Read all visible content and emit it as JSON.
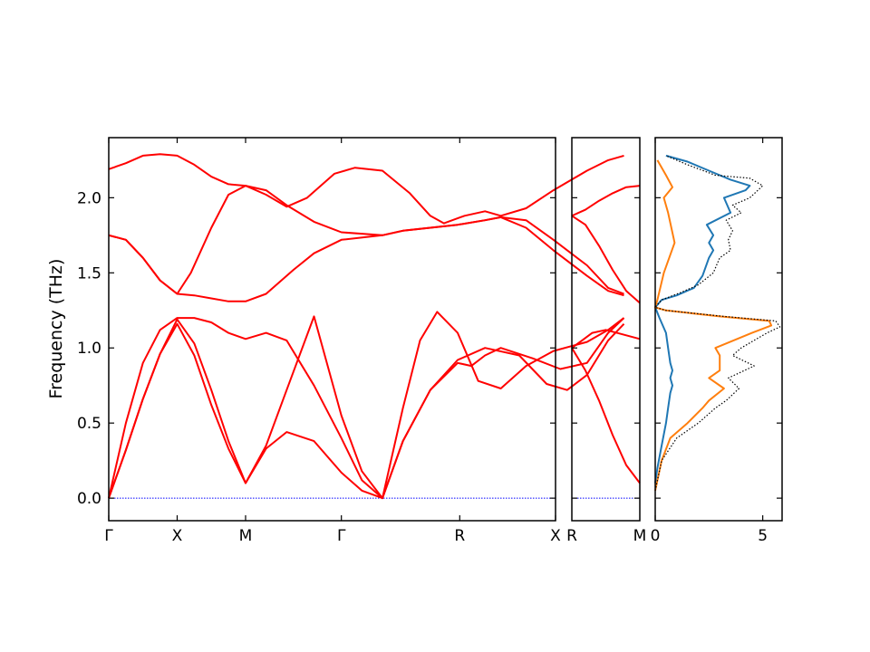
{
  "chart_data": [
    {
      "type": "line",
      "panel": "band-structure",
      "ylabel": "Frequency (THz)",
      "ylim": [
        -0.15,
        2.4
      ],
      "yticks": [
        "0.0",
        "0.5",
        "1.0",
        "1.5",
        "2.0"
      ],
      "ytick_values": [
        0.0,
        0.5,
        1.0,
        1.5,
        2.0
      ],
      "xticks": [
        "Γ",
        "X",
        "M",
        "Γ",
        "R",
        "X"
      ],
      "xtick_positions": [
        0,
        1,
        2,
        3,
        4,
        5
      ],
      "x_segment_widths": [
        1,
        1,
        1.4,
        1.73,
        1.4
      ],
      "baseline": {
        "y": 0.0,
        "color": "#0000ff",
        "style": "dotted"
      },
      "band_color": "#ff0000",
      "bands": [
        [
          [
            0,
            0
          ],
          [
            0.25,
            0.32
          ],
          [
            0.5,
            0.66
          ],
          [
            0.75,
            0.96
          ],
          [
            1,
            1.16
          ],
          [
            1.25,
            0.95
          ],
          [
            1.5,
            0.62
          ],
          [
            1.75,
            0.33
          ],
          [
            2,
            0.1
          ],
          [
            2.3,
            0.35
          ],
          [
            2.6,
            0.72
          ],
          [
            3,
            1.21
          ],
          [
            3.4,
            0.55
          ],
          [
            3.7,
            0.18
          ],
          [
            4,
            0
          ],
          [
            4.3,
            0.38
          ],
          [
            4.7,
            0.72
          ],
          [
            5.1,
            0.92
          ],
          [
            5.5,
            1.0
          ],
          [
            6,
            0.95
          ],
          [
            6.4,
            0.76
          ],
          [
            6.7,
            0.72
          ],
          [
            6.99,
            0.82
          ],
          [
            7.3,
            1.05
          ],
          [
            7.53,
            1.16
          ]
        ],
        [
          [
            0,
            0
          ],
          [
            0.25,
            0.32
          ],
          [
            0.5,
            0.66
          ],
          [
            0.75,
            0.96
          ],
          [
            1,
            1.19
          ],
          [
            1.25,
            1.03
          ],
          [
            1.5,
            0.72
          ],
          [
            1.75,
            0.38
          ],
          [
            2,
            0.1
          ],
          [
            2.3,
            0.33
          ],
          [
            2.6,
            0.44
          ],
          [
            3,
            0.38
          ],
          [
            3.4,
            0.17
          ],
          [
            3.7,
            0.05
          ],
          [
            4,
            0
          ],
          [
            4.3,
            0.38
          ],
          [
            4.7,
            0.72
          ],
          [
            5.1,
            0.9
          ],
          [
            5.3,
            0.88
          ],
          [
            5.5,
            0.95
          ],
          [
            5.73,
            1.0
          ],
          [
            6.2,
            0.93
          ],
          [
            6.6,
            0.86
          ],
          [
            6.99,
            0.9
          ],
          [
            7.3,
            1.1
          ],
          [
            7.53,
            1.2
          ]
        ],
        [
          [
            0,
            0
          ],
          [
            0.25,
            0.5
          ],
          [
            0.5,
            0.9
          ],
          [
            0.75,
            1.12
          ],
          [
            1,
            1.2
          ],
          [
            1.25,
            1.2
          ],
          [
            1.5,
            1.17
          ],
          [
            1.75,
            1.1
          ],
          [
            2,
            1.06
          ],
          [
            2.3,
            1.1
          ],
          [
            2.6,
            1.05
          ],
          [
            3,
            0.75
          ],
          [
            3.4,
            0.4
          ],
          [
            3.7,
            0.12
          ],
          [
            4,
            0
          ],
          [
            4.3,
            0.6
          ],
          [
            4.55,
            1.05
          ],
          [
            4.8,
            1.24
          ],
          [
            5.1,
            1.1
          ],
          [
            5.4,
            0.78
          ],
          [
            5.73,
            0.73
          ],
          [
            6.1,
            0.88
          ],
          [
            6.5,
            0.98
          ],
          [
            6.99,
            1.04
          ],
          [
            7.3,
            1.12
          ],
          [
            7.53,
            1.2
          ]
        ],
        [
          [
            0,
            1.75
          ],
          [
            0.25,
            1.72
          ],
          [
            0.5,
            1.6
          ],
          [
            0.75,
            1.45
          ],
          [
            1,
            1.36
          ],
          [
            1.25,
            1.35
          ],
          [
            1.5,
            1.33
          ],
          [
            1.75,
            1.31
          ],
          [
            2,
            1.31
          ],
          [
            2.3,
            1.36
          ],
          [
            2.7,
            1.52
          ],
          [
            3,
            1.63
          ],
          [
            3.4,
            1.72
          ],
          [
            4,
            1.75
          ],
          [
            4.3,
            1.78
          ],
          [
            4.7,
            1.8
          ],
          [
            5.1,
            1.82
          ],
          [
            5.5,
            1.85
          ],
          [
            5.73,
            1.87
          ],
          [
            6.1,
            1.8
          ],
          [
            6.5,
            1.65
          ],
          [
            6.99,
            1.48
          ],
          [
            7.3,
            1.38
          ],
          [
            7.53,
            1.35
          ]
        ],
        [
          [
            0,
            1.75
          ],
          [
            0.25,
            1.72
          ],
          [
            0.5,
            1.6
          ],
          [
            0.75,
            1.45
          ],
          [
            1,
            1.36
          ],
          [
            1.2,
            1.5
          ],
          [
            1.5,
            1.8
          ],
          [
            1.75,
            2.02
          ],
          [
            2,
            2.08
          ],
          [
            2.3,
            2.05
          ],
          [
            2.6,
            1.95
          ],
          [
            3,
            1.84
          ],
          [
            3.4,
            1.77
          ],
          [
            4,
            1.75
          ],
          [
            4.3,
            1.78
          ],
          [
            4.7,
            1.8
          ],
          [
            5.1,
            1.82
          ],
          [
            5.5,
            1.85
          ],
          [
            5.73,
            1.87
          ],
          [
            6.1,
            1.85
          ],
          [
            6.5,
            1.72
          ],
          [
            6.99,
            1.55
          ],
          [
            7.3,
            1.4
          ],
          [
            7.53,
            1.36
          ]
        ],
        [
          [
            0,
            2.19
          ],
          [
            0.25,
            2.23
          ],
          [
            0.5,
            2.28
          ],
          [
            0.75,
            2.29
          ],
          [
            1,
            2.28
          ],
          [
            1.25,
            2.22
          ],
          [
            1.5,
            2.14
          ],
          [
            1.75,
            2.09
          ],
          [
            2,
            2.08
          ],
          [
            2.3,
            2.02
          ],
          [
            2.6,
            1.94
          ],
          [
            2.9,
            2.0
          ],
          [
            3.3,
            2.16
          ],
          [
            3.6,
            2.2
          ],
          [
            4,
            2.18
          ],
          [
            4.4,
            2.03
          ],
          [
            4.7,
            1.88
          ],
          [
            4.9,
            1.83
          ],
          [
            5.2,
            1.88
          ],
          [
            5.5,
            1.91
          ],
          [
            5.73,
            1.88
          ],
          [
            6.1,
            1.93
          ],
          [
            6.5,
            2.05
          ],
          [
            6.99,
            2.18
          ],
          [
            7.3,
            2.25
          ],
          [
            7.53,
            2.28
          ]
        ]
      ]
    },
    {
      "type": "line",
      "panel": "band-structure-segment",
      "xticks": [
        "R",
        "M"
      ],
      "xtick_positions": [
        0,
        1
      ],
      "ylim": [
        -0.15,
        2.4
      ],
      "band_color": "#ff0000",
      "bands": [
        [
          [
            0,
            1.0
          ],
          [
            0.2,
            0.85
          ],
          [
            0.4,
            0.65
          ],
          [
            0.6,
            0.42
          ],
          [
            0.8,
            0.22
          ],
          [
            1,
            0.1
          ]
        ],
        [
          [
            0,
            1.0
          ],
          [
            0.15,
            1.05
          ],
          [
            0.3,
            1.1
          ],
          [
            0.5,
            1.12
          ],
          [
            0.75,
            1.09
          ],
          [
            1,
            1.06
          ]
        ],
        [
          [
            0,
            1.88
          ],
          [
            0.2,
            1.82
          ],
          [
            0.4,
            1.68
          ],
          [
            0.6,
            1.52
          ],
          [
            0.8,
            1.38
          ],
          [
            1,
            1.3
          ]
        ],
        [
          [
            0,
            1.88
          ],
          [
            0.2,
            1.92
          ],
          [
            0.4,
            1.98
          ],
          [
            0.6,
            2.03
          ],
          [
            0.8,
            2.07
          ],
          [
            1,
            2.08
          ]
        ]
      ]
    },
    {
      "type": "line",
      "panel": "density-of-states",
      "xticks": [
        "0",
        "5"
      ],
      "xtick_values": [
        0,
        5
      ],
      "xlim": [
        0,
        5.9
      ],
      "ylim": [
        -0.15,
        2.4
      ],
      "series": [
        {
          "color": "#1f77b4",
          "style": "solid",
          "points": [
            [
              0,
              0.1
            ],
            [
              0.1,
              0.2
            ],
            [
              0.3,
              0.35
            ],
            [
              0.5,
              0.5
            ],
            [
              0.6,
              0.6
            ],
            [
              0.7,
              0.7
            ],
            [
              0.8,
              0.75
            ],
            [
              0.7,
              0.8
            ],
            [
              0.8,
              0.85
            ],
            [
              0.7,
              0.9
            ],
            [
              0.6,
              1.0
            ],
            [
              0.5,
              1.1
            ],
            [
              0.2,
              1.2
            ],
            [
              0,
              1.27
            ],
            [
              0.3,
              1.32
            ],
            [
              1.0,
              1.35
            ],
            [
              1.8,
              1.4
            ],
            [
              2.2,
              1.48
            ],
            [
              2.5,
              1.6
            ],
            [
              2.7,
              1.65
            ],
            [
              2.5,
              1.7
            ],
            [
              2.7,
              1.75
            ],
            [
              2.4,
              1.82
            ],
            [
              3.5,
              1.9
            ],
            [
              3.2,
              2.0
            ],
            [
              4.2,
              2.05
            ],
            [
              4.4,
              2.08
            ],
            [
              3.5,
              2.12
            ],
            [
              2.5,
              2.18
            ],
            [
              1.5,
              2.24
            ],
            [
              0.5,
              2.28
            ]
          ]
        },
        {
          "color": "#ff7f0e",
          "style": "solid",
          "points": [
            [
              0,
              0.05
            ],
            [
              0.3,
              0.25
            ],
            [
              0.7,
              0.4
            ],
            [
              1.5,
              0.5
            ],
            [
              2.2,
              0.6
            ],
            [
              2.5,
              0.65
            ],
            [
              3.2,
              0.73
            ],
            [
              2.5,
              0.8
            ],
            [
              3.0,
              0.85
            ],
            [
              3.0,
              0.95
            ],
            [
              2.8,
              1.0
            ],
            [
              4.5,
              1.1
            ],
            [
              5.4,
              1.15
            ],
            [
              5.3,
              1.18
            ],
            [
              3.0,
              1.21
            ],
            [
              0.5,
              1.25
            ],
            [
              0,
              1.27
            ],
            [
              0.1,
              1.32
            ],
            [
              0.4,
              1.5
            ],
            [
              0.9,
              1.7
            ],
            [
              0.6,
              1.9
            ],
            [
              0.4,
              2.0
            ],
            [
              0.8,
              2.07
            ],
            [
              0.5,
              2.15
            ],
            [
              0.1,
              2.25
            ]
          ]
        },
        {
          "color": "#000000",
          "style": "dotted",
          "points": [
            [
              0,
              0.05
            ],
            [
              0.3,
              0.25
            ],
            [
              1.0,
              0.4
            ],
            [
              2.0,
              0.5
            ],
            [
              2.8,
              0.6
            ],
            [
              3.3,
              0.65
            ],
            [
              3.9,
              0.73
            ],
            [
              3.4,
              0.8
            ],
            [
              4.6,
              0.88
            ],
            [
              3.6,
              0.95
            ],
            [
              4.0,
              1.0
            ],
            [
              5.2,
              1.1
            ],
            [
              5.8,
              1.14
            ],
            [
              5.6,
              1.18
            ],
            [
              3.2,
              1.21
            ],
            [
              0.5,
              1.25
            ],
            [
              0,
              1.27
            ],
            [
              0.3,
              1.32
            ],
            [
              1.2,
              1.37
            ],
            [
              2.0,
              1.42
            ],
            [
              2.7,
              1.5
            ],
            [
              3.0,
              1.6
            ],
            [
              3.5,
              1.65
            ],
            [
              3.4,
              1.72
            ],
            [
              3.6,
              1.78
            ],
            [
              3.3,
              1.85
            ],
            [
              4.0,
              1.9
            ],
            [
              3.6,
              1.95
            ],
            [
              4.4,
              2.0
            ],
            [
              5.0,
              2.08
            ],
            [
              4.4,
              2.13
            ],
            [
              2.8,
              2.15
            ],
            [
              1.5,
              2.22
            ],
            [
              0.5,
              2.28
            ]
          ]
        }
      ]
    }
  ]
}
